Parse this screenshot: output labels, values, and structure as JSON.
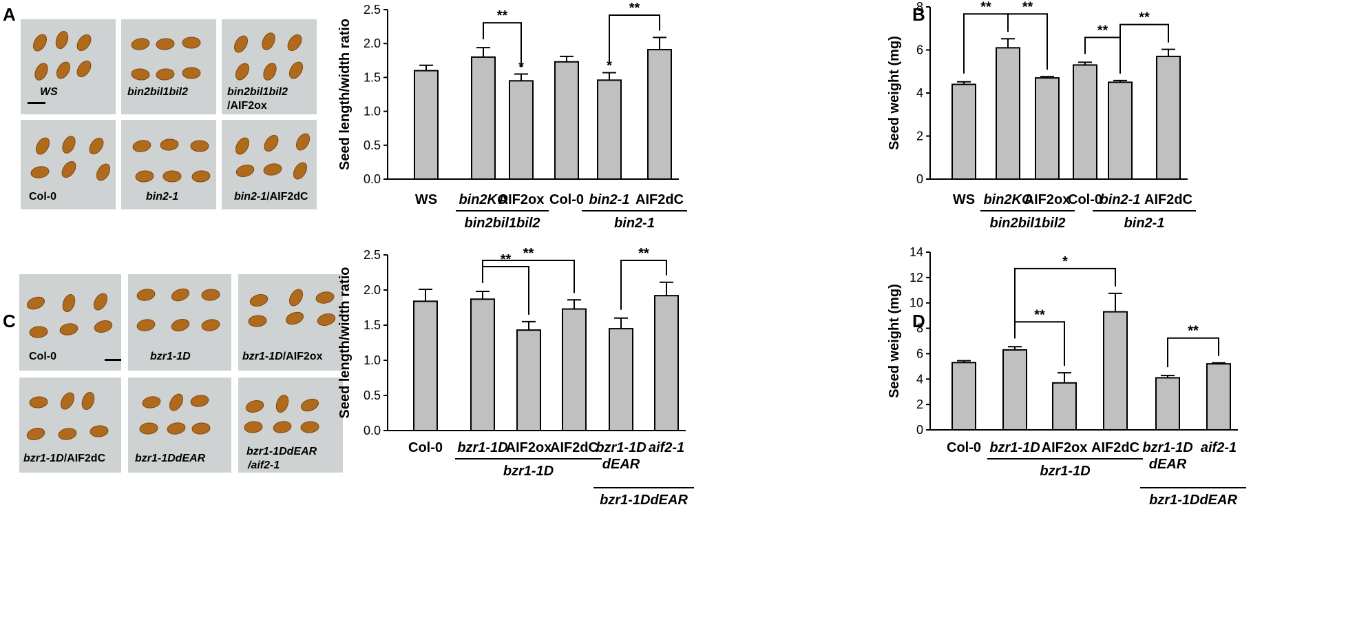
{
  "panel_letters": {
    "a": "A",
    "b": "B",
    "c": "C",
    "d": "D"
  },
  "colors": {
    "bar": "#c0c0c0",
    "seed": "#b06a1c",
    "seed_light": "#c98a2a",
    "photo": "#cfd2d2"
  },
  "photos_a": [
    {
      "label": "WS",
      "italic": true
    },
    {
      "label": "bin2bil1bil2",
      "italic": true
    },
    {
      "label": "bin2bil1bil2",
      "label2": "/AIF2ox",
      "italic": true
    },
    {
      "label": "Col-0",
      "italic": false
    },
    {
      "label": "bin2-1",
      "italic": true
    },
    {
      "label": "bin2-1",
      "label2": "/AIF2dC",
      "italic": true
    }
  ],
  "photos_c": [
    {
      "label": "Col-0",
      "italic": false
    },
    {
      "label": "bzr1-1D",
      "italic": true
    },
    {
      "label": "bzr1-1D",
      "label2": "/AIF2ox",
      "italic": true
    },
    {
      "label": "bzr1-1D",
      "label2": "/AIF2dC",
      "italic": true
    },
    {
      "label": "bzr1-1DdEAR",
      "italic": true
    },
    {
      "label": "bzr1-1DdEAR",
      "label2": "/aif2-1",
      "italic": true
    }
  ],
  "chart_data": [
    {
      "id": "A",
      "type": "bar",
      "ylabel": "Seed length/width ratio",
      "ylim": [
        0,
        2.5
      ],
      "yticks": [
        "0.0",
        "0.5",
        "1.0",
        "1.5",
        "2.0",
        "2.5"
      ],
      "categories": [
        "WS",
        "bin2KO",
        "AIF2ox",
        "Col-0",
        "bin2-1",
        "AIF2dC"
      ],
      "values": [
        1.6,
        1.8,
        1.45,
        1.73,
        1.46,
        1.91
      ],
      "errors": [
        0.08,
        0.14,
        0.1,
        0.08,
        0.11,
        0.18
      ],
      "star_labels": [
        "",
        "",
        "*",
        "",
        "*",
        ""
      ],
      "groups": [
        {
          "label": "bin2bil1bil2",
          "from": 1,
          "to": 2
        },
        {
          "label": "bin2-1",
          "from": 4,
          "to": 5
        }
      ],
      "comparisons": [
        {
          "from": 1,
          "to": 2,
          "label": "**"
        },
        {
          "from": 4,
          "to": 5,
          "label": "**"
        }
      ]
    },
    {
      "id": "B",
      "type": "bar",
      "ylabel": "Seed weight (mg)",
      "ylim": [
        0,
        8
      ],
      "yticks": [
        "0",
        "2",
        "4",
        "6",
        "8"
      ],
      "categories": [
        "WS",
        "bin2KO",
        "AIF2ox",
        "Col-0",
        "bin2-1",
        "AIF2dC"
      ],
      "values": [
        4.4,
        6.1,
        4.7,
        5.3,
        4.5,
        5.7
      ],
      "errors": [
        0.12,
        0.42,
        0.06,
        0.13,
        0.08,
        0.33
      ],
      "star_labels": [
        "",
        "",
        "",
        "",
        "",
        ""
      ],
      "groups": [
        {
          "label": "bin2bil1bil2",
          "from": 1,
          "to": 2
        },
        {
          "label": "bin2-1",
          "from": 4,
          "to": 5
        }
      ],
      "comparisons": [
        {
          "from": 0,
          "to": 1,
          "label": "**"
        },
        {
          "from": 1,
          "to": 2,
          "label": "**"
        },
        {
          "from": 3,
          "to": 4,
          "label": "**"
        },
        {
          "from": 4,
          "to": 5,
          "label": "**"
        }
      ]
    },
    {
      "id": "C",
      "type": "bar",
      "ylabel": "Seed length/width ratio",
      "ylim": [
        0,
        2.5
      ],
      "yticks": [
        "0.0",
        "0.5",
        "1.0",
        "1.5",
        "2.0",
        "2.5"
      ],
      "categories": [
        "Col-0",
        "bzr1-1D",
        "AIF2ox",
        "AIF2dC",
        "bzr1-1D\ndEAR",
        "aif2-1"
      ],
      "values": [
        1.84,
        1.87,
        1.43,
        1.73,
        1.45,
        1.92
      ],
      "errors": [
        0.17,
        0.11,
        0.12,
        0.13,
        0.15,
        0.19
      ],
      "star_labels": [
        "",
        "",
        "",
        "",
        "",
        ""
      ],
      "groups": [
        {
          "label": "bzr1-1D",
          "from": 1,
          "to": 3
        },
        {
          "label": "bzr1-1DdEAR",
          "from": 4,
          "to": 5,
          "level": 2
        }
      ],
      "comparisons": [
        {
          "from": 1,
          "to": 2,
          "label": "**"
        },
        {
          "from": 1,
          "to": 3,
          "label": "**"
        },
        {
          "from": 4,
          "to": 5,
          "label": "**"
        }
      ]
    },
    {
      "id": "D",
      "type": "bar",
      "ylabel": "Seed weight (mg)",
      "ylim": [
        0,
        14
      ],
      "yticks": [
        "0",
        "2",
        "4",
        "6",
        "8",
        "10",
        "12",
        "14"
      ],
      "categories": [
        "Col-0",
        "bzr1-1D",
        "AIF2ox",
        "AIF2dC",
        "bzr1-1D\ndEAR",
        "aif2-1"
      ],
      "values": [
        5.3,
        6.3,
        3.7,
        9.3,
        4.1,
        5.2
      ],
      "errors": [
        0.15,
        0.25,
        0.8,
        1.45,
        0.18,
        0.08
      ],
      "star_labels": [
        "",
        "",
        "",
        "",
        "",
        ""
      ],
      "groups": [
        {
          "label": "bzr1-1D",
          "from": 1,
          "to": 3
        },
        {
          "label": "bzr1-1DdEAR",
          "from": 4,
          "to": 5,
          "level": 2
        }
      ],
      "comparisons": [
        {
          "from": 1,
          "to": 2,
          "label": "**"
        },
        {
          "from": 1,
          "to": 3,
          "label": "*"
        },
        {
          "from": 4,
          "to": 5,
          "label": "**"
        }
      ]
    }
  ]
}
